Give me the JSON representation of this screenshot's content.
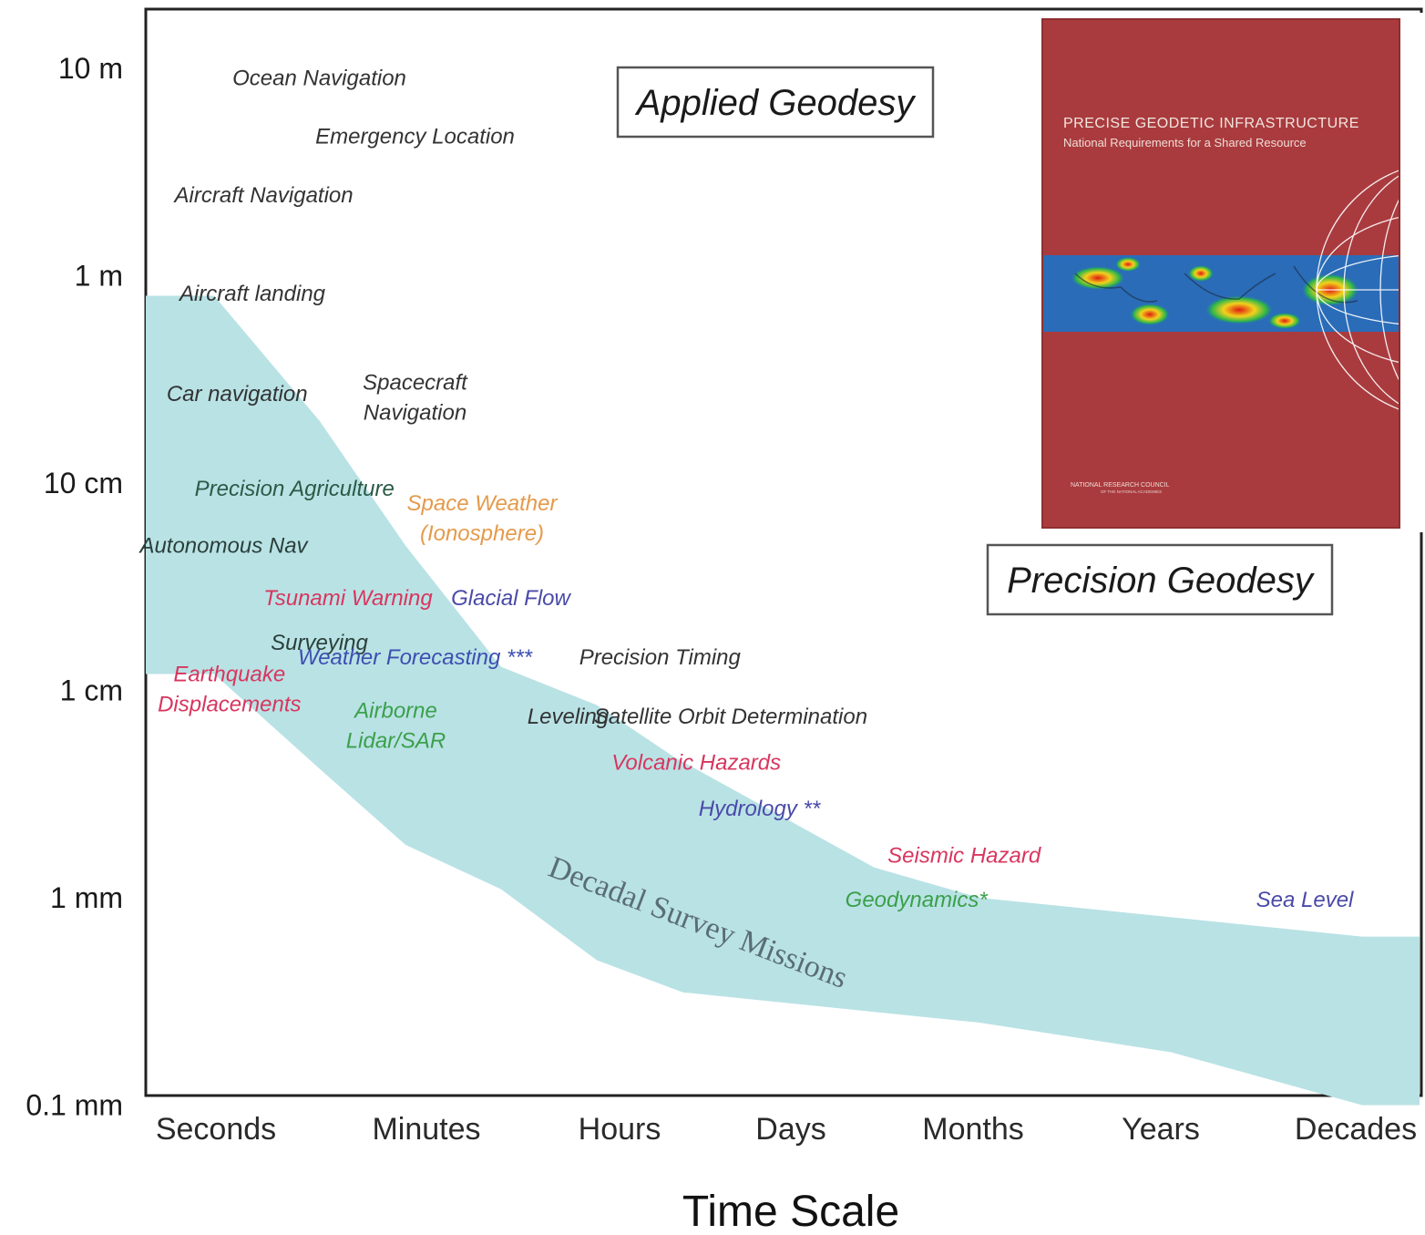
{
  "chart_data": {
    "type": "area",
    "title": "",
    "xlabel": "Time Scale",
    "ylabel": "",
    "y_scale": "log",
    "categories": [
      "Seconds",
      "Minutes",
      "Hours",
      "Days",
      "Months",
      "Years",
      "Decades"
    ],
    "y_ticks": [
      "10 m",
      "1 m",
      "10 cm",
      "1 cm",
      "1 mm",
      "0.1 mm"
    ],
    "y_tick_values_m": [
      10,
      1,
      0.1,
      0.01,
      0.001,
      0.0001
    ],
    "ylim_m": [
      0.0001,
      10
    ],
    "band": {
      "label": "Decadal Survey Missions",
      "color": "#b9e2e5",
      "upper": [
        {
          "t": 0.0,
          "y": 0.8
        },
        {
          "t": 0.55,
          "y": 0.2
        },
        {
          "t": 1.0,
          "y": 0.05
        },
        {
          "t": 1.5,
          "y": 0.013
        },
        {
          "t": 2.0,
          "y": 0.0085
        },
        {
          "t": 2.4,
          "y": 0.0048
        },
        {
          "t": 3.45,
          "y": 0.0014
        },
        {
          "t": 4.0,
          "y": 0.001
        },
        {
          "t": 6.0,
          "y": 0.00065
        }
      ],
      "lower": [
        {
          "t": 0.0,
          "y": 0.012
        },
        {
          "t": 0.55,
          "y": 0.0042
        },
        {
          "t": 1.0,
          "y": 0.0018
        },
        {
          "t": 1.5,
          "y": 0.0011
        },
        {
          "t": 2.0,
          "y": 0.0005
        },
        {
          "t": 2.45,
          "y": 0.00035
        },
        {
          "t": 4.0,
          "y": 0.00025
        },
        {
          "t": 5.0,
          "y": 0.00018
        },
        {
          "t": 6.0,
          "y": 0.0001
        }
      ]
    },
    "regions": [
      "Applied Geodesy",
      "Precision Geodesy"
    ],
    "applications": [
      {
        "label": "Ocean Navigation",
        "t": 0.55,
        "y": 9.0,
        "color": "#333333"
      },
      {
        "label": "Emergency Location",
        "t": 1.05,
        "y": 4.7,
        "color": "#333333"
      },
      {
        "label": "Aircraft Navigation",
        "t": 0.26,
        "y": 2.45,
        "color": "#333333"
      },
      {
        "label": "Aircraft landing",
        "t": 0.2,
        "y": 0.82,
        "color": "#333333"
      },
      {
        "label": "Car navigation",
        "t": 0.12,
        "y": 0.27,
        "color": "#333333"
      },
      {
        "label": "Spacecraft Navigation",
        "t": 1.05,
        "y": 0.26,
        "color": "#333333"
      },
      {
        "label": "Precision Agriculture",
        "t": 0.42,
        "y": 0.094,
        "color": "#2b5a46"
      },
      {
        "label": "Space Weather (Ionosphere)",
        "t": 1.4,
        "y": 0.068,
        "color": "#e59a4a"
      },
      {
        "label": "Autonomous Nav",
        "t": 0.05,
        "y": 0.05,
        "color": "#2a3f3a"
      },
      {
        "label": "Tsunami Warning",
        "t": 0.7,
        "y": 0.028,
        "color": "#d8365e"
      },
      {
        "label": "Glacial Flow",
        "t": 1.55,
        "y": 0.028,
        "color": "#4a4aa8"
      },
      {
        "label": "Surveying",
        "t": 0.55,
        "y": 0.017,
        "color": "#2a3f3a"
      },
      {
        "label": "Weather Forecasting ***",
        "t": 1.05,
        "y": 0.0145,
        "color": "#3d4fb0"
      },
      {
        "label": "Precision Timing",
        "t": 2.33,
        "y": 0.0145,
        "color": "#333333"
      },
      {
        "label": "Earthquake Displacements",
        "t": 0.08,
        "y": 0.0102,
        "color": "#d8365e"
      },
      {
        "label": "Airborne Lidar/SAR",
        "t": 0.95,
        "y": 0.0068,
        "color": "#3aa04a"
      },
      {
        "label": "Leveling",
        "t": 1.85,
        "y": 0.0075,
        "color": "#333333"
      },
      {
        "label": "Satellite Orbit Determination",
        "t": 2.7,
        "y": 0.0075,
        "color": "#333333"
      },
      {
        "label": "Volcanic Hazards",
        "t": 2.52,
        "y": 0.0045,
        "color": "#d8365e"
      },
      {
        "label": "Hydrology **",
        "t": 2.85,
        "y": 0.0027,
        "color": "#4a4aa8"
      },
      {
        "label": "Seismic Hazard",
        "t": 3.92,
        "y": 0.0016,
        "color": "#d8365e"
      },
      {
        "label": "Geodynamics*",
        "t": 3.67,
        "y": 0.00098,
        "color": "#3aa04a"
      },
      {
        "label": "Sea Level",
        "t": 5.7,
        "y": 0.00098,
        "color": "#4a4aa8"
      }
    ]
  },
  "inset": {
    "title": "PRECISE GEODETIC INFRASTRUCTURE",
    "subtitle": "National Requirements for a Shared Resource",
    "publisher": "NATIONAL RESEARCH COUNCIL",
    "publisher_sub": "OF THE NATIONAL ACADEMIES",
    "cover_color": "#a5383b",
    "band_color": "#2a6cb8"
  }
}
